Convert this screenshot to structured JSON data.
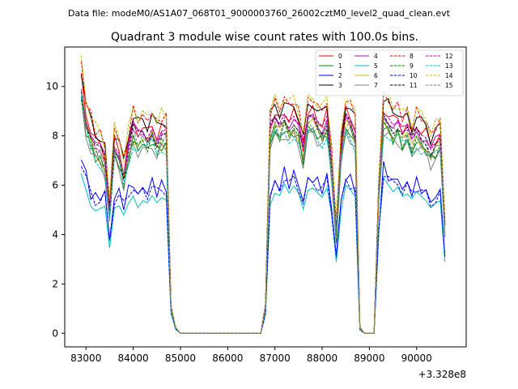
{
  "figure": {
    "data_file_label": "Data file: modeM0/AS1A07_068T01_9000003760_26002cztM0_level2_quad_clean.evt"
  },
  "chart_data": {
    "type": "line",
    "title": "Quadrant 3 module wise count rates with 100.0s bins.",
    "xlabel": "",
    "ylabel": "",
    "x_offset_label": "+3.328e8",
    "xlim": [
      82550,
      91050
    ],
    "ylim": [
      -0.55,
      11.6
    ],
    "xticks": [
      83000,
      84000,
      85000,
      86000,
      87000,
      88000,
      89000,
      90000
    ],
    "xtick_labels": [
      "83000",
      "84000",
      "85000",
      "86000",
      "87000",
      "88000",
      "89000",
      "90000"
    ],
    "yticks": [
      0,
      2,
      4,
      6,
      8,
      10
    ],
    "ytick_labels": [
      "0",
      "2",
      "4",
      "6",
      "8",
      "10"
    ],
    "grid": false,
    "legend_position": "top-right",
    "legend_columns": 4,
    "base_curves": {
      "x": [
        82900,
        83000,
        83100,
        83200,
        83300,
        83400,
        83500,
        83600,
        83700,
        83800,
        83900,
        84000,
        84100,
        84200,
        84300,
        84400,
        84500,
        84600,
        84700,
        84800,
        84900,
        85000,
        85100,
        85200,
        85300,
        85400,
        85500,
        85600,
        85700,
        85800,
        85900,
        86000,
        86100,
        86200,
        86300,
        86400,
        86500,
        86600,
        86700,
        86800,
        86900,
        87000,
        87100,
        87200,
        87300,
        87400,
        87500,
        87600,
        87700,
        87800,
        87900,
        88000,
        88100,
        88200,
        88300,
        88400,
        88500,
        88600,
        88700,
        88800,
        88900,
        89000,
        89100,
        89200,
        89300,
        89400,
        89500,
        89600,
        89700,
        89800,
        89900,
        90000,
        90100,
        90200,
        90300,
        90400,
        90500,
        90600
      ],
      "high_group": [
        10.3,
        8.9,
        8.3,
        7.8,
        7.6,
        7.2,
        5.0,
        7.8,
        7.5,
        6.6,
        7.7,
        8.5,
        8.2,
        8.3,
        8.1,
        8.5,
        8.0,
        8.3,
        8.2,
        1.0,
        0.2,
        0,
        0,
        0,
        0,
        0,
        0,
        0,
        0,
        0,
        0,
        0,
        0,
        0,
        0,
        0,
        0,
        0,
        0,
        1.1,
        8.5,
        8.8,
        8.6,
        9.0,
        8.7,
        8.9,
        8.5,
        7.6,
        8.8,
        9.0,
        8.7,
        8.5,
        8.9,
        7.0,
        4.2,
        7.4,
        9.0,
        8.8,
        8.3,
        0.2,
        0,
        0,
        0,
        6.0,
        9.1,
        8.9,
        8.6,
        8.7,
        8.3,
        8.4,
        8.0,
        8.5,
        8.2,
        8.1,
        7.6,
        7.9,
        8.0,
        4.4
      ],
      "low_group": [
        6.8,
        6.1,
        5.4,
        5.2,
        5.3,
        5.4,
        3.6,
        5.3,
        5.4,
        5.0,
        5.5,
        5.8,
        5.3,
        5.6,
        5.5,
        5.8,
        5.5,
        5.7,
        5.6,
        0.8,
        0.15,
        0,
        0,
        0,
        0,
        0,
        0,
        0,
        0,
        0,
        0,
        0,
        0,
        0,
        0,
        0,
        0,
        0,
        0,
        0.8,
        5.3,
        5.8,
        5.7,
        6.2,
        5.8,
        6.1,
        5.8,
        5.1,
        5.9,
        6.0,
        5.8,
        5.6,
        6.0,
        4.9,
        3.0,
        5.0,
        6.1,
        5.9,
        5.6,
        0.1,
        0,
        0,
        0,
        4.1,
        6.4,
        6.1,
        5.8,
        6.0,
        5.6,
        5.7,
        5.5,
        5.8,
        5.6,
        5.4,
        5.1,
        5.3,
        5.4,
        3.0
      ]
    },
    "series": [
      {
        "name": "0",
        "color": "#ff0000",
        "dash": "solid",
        "group": "high",
        "scale": 1.0,
        "offset": 0.0
      },
      {
        "name": "1",
        "color": "#008000",
        "dash": "solid",
        "group": "high",
        "scale": 0.92,
        "offset": 0.0
      },
      {
        "name": "2",
        "color": "#0000ff",
        "dash": "solid",
        "group": "low",
        "scale": 1.05,
        "offset": 0.0
      },
      {
        "name": "3",
        "color": "#000000",
        "dash": "solid",
        "group": "high",
        "scale": 1.04,
        "offset": 0.0
      },
      {
        "name": "4",
        "color": "#bf00bf",
        "dash": "solid",
        "group": "high",
        "scale": 0.98,
        "offset": 0.0
      },
      {
        "name": "5",
        "color": "#00bfbf",
        "dash": "solid",
        "group": "low",
        "scale": 0.95,
        "offset": 0.0
      },
      {
        "name": "6",
        "color": "#bfbf00",
        "dash": "solid",
        "group": "high",
        "scale": 0.94,
        "offset": 0.0
      },
      {
        "name": "7",
        "color": "#808080",
        "dash": "solid",
        "group": "high",
        "scale": 0.9,
        "offset": 0.0
      },
      {
        "name": "8",
        "color": "#ff0000",
        "dash": "dashed",
        "group": "high",
        "scale": 1.06,
        "offset": 0.0
      },
      {
        "name": "9",
        "color": "#008000",
        "dash": "dashed",
        "group": "high",
        "scale": 0.93,
        "offset": 0.0
      },
      {
        "name": "10",
        "color": "#0000ff",
        "dash": "dashed",
        "group": "low",
        "scale": 1.03,
        "offset": 0.0
      },
      {
        "name": "11",
        "color": "#000000",
        "dash": "dashed",
        "group": "high",
        "scale": 0.97,
        "offset": 0.0
      },
      {
        "name": "12",
        "color": "#bf00bf",
        "dash": "dashed",
        "group": "high",
        "scale": 0.96,
        "offset": 0.0
      },
      {
        "name": "13",
        "color": "#00bfbf",
        "dash": "dashed",
        "group": "high",
        "scale": 0.91,
        "offset": 0.0
      },
      {
        "name": "14",
        "color": "#bfbf00",
        "dash": "dashed",
        "group": "high",
        "scale": 1.07,
        "offset": 0.0
      },
      {
        "name": "15",
        "color": "#808080",
        "dash": "dashed",
        "group": "high",
        "scale": 0.95,
        "offset": 0.0
      }
    ]
  }
}
